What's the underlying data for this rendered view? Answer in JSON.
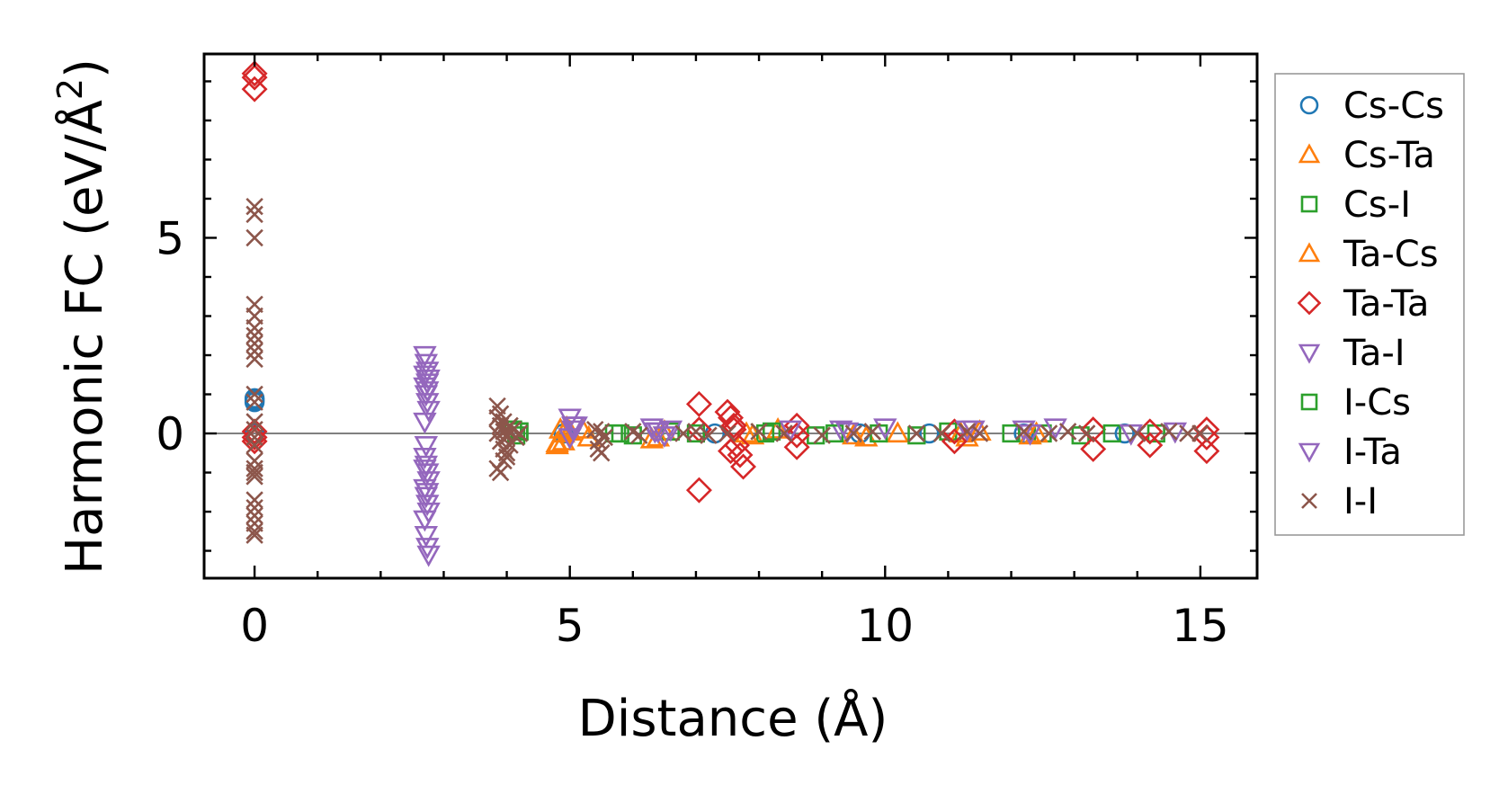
{
  "chart_data": {
    "type": "scatter",
    "xlabel": "Distance (Å)",
    "ylabel_main": "Harmonic FC (eV/Å",
    "ylabel_sup": "2",
    "ylabel_close": ")",
    "xlim": [
      -0.8,
      15.9
    ],
    "ylim": [
      -3.7,
      9.7
    ],
    "xticks": [
      0,
      5,
      10,
      15
    ],
    "xtick_labels": [
      "0",
      "5",
      "10",
      "15"
    ],
    "yticks": [
      0,
      5
    ],
    "ytick_labels": [
      "0",
      "5"
    ],
    "reference_line_y": 0,
    "legend_position": "right",
    "series": [
      {
        "name": "Cs-Cs",
        "marker": "circle",
        "color": "#1f77b4",
        "x": [
          0,
          0,
          0,
          0,
          4.9,
          7.3,
          9.6,
          10.7,
          12.2,
          13.8
        ],
        "y": [
          0.85,
          0.9,
          0.8,
          0.0,
          0.0,
          0.0,
          0.0,
          0.0,
          0.0,
          0.0
        ]
      },
      {
        "name": "Cs-Ta",
        "marker": "triangle-up",
        "color": "#ff7f0e",
        "x": [
          4.8,
          4.85,
          4.9,
          4.95,
          5.0,
          5.3,
          6.3,
          6.5,
          7.9,
          8.3,
          9.7,
          10.2,
          11.3,
          11.5,
          12.3
        ],
        "y": [
          -0.3,
          0.1,
          -0.2,
          0.15,
          0.05,
          -0.1,
          -0.15,
          0.05,
          -0.05,
          0.1,
          -0.1,
          0.0,
          -0.1,
          0.05,
          -0.05
        ]
      },
      {
        "name": "Cs-I",
        "marker": "square",
        "color": "#2ca02c",
        "x": [
          4.1,
          4.15,
          4.2,
          5.7,
          6.0,
          6.6,
          8.1,
          8.9,
          9.9,
          11.0,
          12.5,
          13.1,
          14.3
        ],
        "y": [
          0.1,
          -0.05,
          0.05,
          0.0,
          -0.05,
          0.05,
          0.0,
          -0.05,
          0.0,
          0.05,
          0.0,
          -0.05,
          0.0
        ]
      },
      {
        "name": "Ta-Cs",
        "marker": "triangle-up",
        "color": "#ff7f0e",
        "x": [
          4.8,
          4.9,
          5.2,
          6.4,
          7.8,
          9.5,
          11.2,
          12.4
        ],
        "y": [
          -0.25,
          0.0,
          0.1,
          -0.1,
          0.0,
          -0.05,
          0.0,
          0.0
        ]
      },
      {
        "name": "Ta-Ta",
        "marker": "diamond",
        "color": "#d62728",
        "x": [
          0,
          0,
          0,
          0,
          0,
          0,
          7.05,
          7.05,
          7.05,
          7.5,
          7.55,
          7.6,
          7.65,
          7.7,
          7.75,
          7.55,
          7.6,
          8.6,
          8.6,
          8.6,
          11.1,
          11.1,
          13.3,
          13.3,
          14.2,
          14.2,
          15.1,
          15.1,
          15.1
        ],
        "y": [
          9.2,
          9.1,
          8.8,
          0.05,
          -0.1,
          -0.2,
          0.75,
          0.1,
          -1.45,
          0.55,
          0.4,
          0.2,
          -0.3,
          -0.55,
          -0.85,
          -0.45,
          0.1,
          0.2,
          -0.05,
          -0.35,
          0.05,
          -0.2,
          0.1,
          -0.4,
          0.05,
          -0.3,
          0.1,
          -0.1,
          -0.45
        ]
      },
      {
        "name": "Ta-I",
        "marker": "triangle-down",
        "color": "#9467bd",
        "x": [
          2.7,
          2.72,
          2.74,
          2.76,
          2.7,
          2.72,
          2.74,
          2.76,
          2.7,
          2.72,
          2.74,
          2.76,
          2.7,
          2.72,
          2.74,
          2.76,
          2.7,
          2.72,
          2.74,
          2.76,
          2.7,
          2.72,
          2.74,
          5.0,
          5.05,
          5.0,
          5.05,
          6.3,
          6.4,
          6.5,
          8.5,
          9.3,
          10.0,
          11.4,
          12.2,
          12.7,
          14.6
        ],
        "y": [
          2.0,
          1.8,
          1.6,
          1.4,
          1.2,
          1.0,
          0.8,
          0.6,
          -0.6,
          -0.8,
          -1.0,
          -1.2,
          -1.4,
          -1.6,
          -1.8,
          -2.0,
          -2.2,
          -2.6,
          -2.9,
          -3.1,
          0.3,
          -0.3,
          1.3,
          0.4,
          0.2,
          -0.1,
          0.1,
          0.15,
          0.05,
          -0.05,
          0.1,
          0.1,
          0.15,
          0.1,
          0.1,
          0.15,
          0.05
        ]
      },
      {
        "name": "I-Cs",
        "marker": "square",
        "color": "#2ca02c",
        "x": [
          4.2,
          5.8,
          7.0,
          8.2,
          9.2,
          10.5,
          12.0,
          13.6
        ],
        "y": [
          0.05,
          0.0,
          0.0,
          0.05,
          0.0,
          -0.05,
          0.0,
          0.0
        ]
      },
      {
        "name": "I-Ta",
        "marker": "triangle-down",
        "color": "#9467bd",
        "x": [
          2.7,
          2.74,
          2.7,
          2.74,
          5.1,
          6.35,
          6.6,
          9.4,
          11.3,
          12.3,
          13.9
        ],
        "y": [
          1.5,
          1.1,
          -0.9,
          -1.5,
          0.2,
          0.05,
          0.1,
          0.05,
          0.1,
          0.0,
          0.0
        ]
      },
      {
        "name": "I-I",
        "marker": "x",
        "color": "#8c564b",
        "x": [
          0,
          0,
          0,
          0,
          0,
          0,
          0,
          0,
          0,
          0,
          0,
          0,
          0,
          0,
          0,
          0,
          0,
          0,
          0,
          0,
          0,
          0,
          0,
          0,
          0,
          0,
          3.85,
          3.85,
          3.9,
          3.9,
          3.95,
          3.95,
          4.0,
          4.0,
          4.05,
          4.05,
          3.85,
          3.9,
          3.95,
          4.0,
          3.85,
          3.9,
          3.95,
          4.0,
          4.1,
          4.15,
          4.2,
          5.4,
          5.45,
          5.5,
          5.55,
          5.45,
          5.5,
          6.0,
          6.1,
          6.8,
          7.0,
          7.2,
          7.5,
          8.0,
          8.4,
          9.0,
          9.5,
          9.8,
          10.5,
          10.9,
          11.3,
          11.5,
          12.2,
          12.6,
          12.9,
          13.2,
          14.0,
          14.5,
          14.8,
          15.0
        ],
        "y": [
          5.8,
          5.6,
          5.0,
          3.3,
          3.0,
          2.7,
          2.5,
          2.3,
          2.1,
          1.9,
          1.0,
          0.8,
          0.3,
          0.1,
          -0.1,
          -0.3,
          -0.7,
          -0.9,
          -1.0,
          -1.1,
          -1.7,
          -1.9,
          -2.1,
          -2.3,
          -2.5,
          -2.6,
          0.7,
          -0.9,
          0.5,
          -1.0,
          0.3,
          -0.7,
          0.1,
          -0.5,
          0.2,
          -0.3,
          0.0,
          -0.2,
          0.05,
          -0.1,
          0.4,
          0.2,
          -0.4,
          -0.6,
          0.1,
          -0.1,
          0.0,
          0.1,
          -0.2,
          0.05,
          -0.1,
          -0.4,
          -0.5,
          0.05,
          -0.05,
          0.0,
          0.05,
          -0.05,
          0.0,
          0.05,
          0.0,
          -0.05,
          0.0,
          0.05,
          0.0,
          0.0,
          0.05,
          0.0,
          0.05,
          0.0,
          0.05,
          0.0,
          0.0,
          0.05,
          0.0,
          0.0
        ]
      }
    ]
  }
}
